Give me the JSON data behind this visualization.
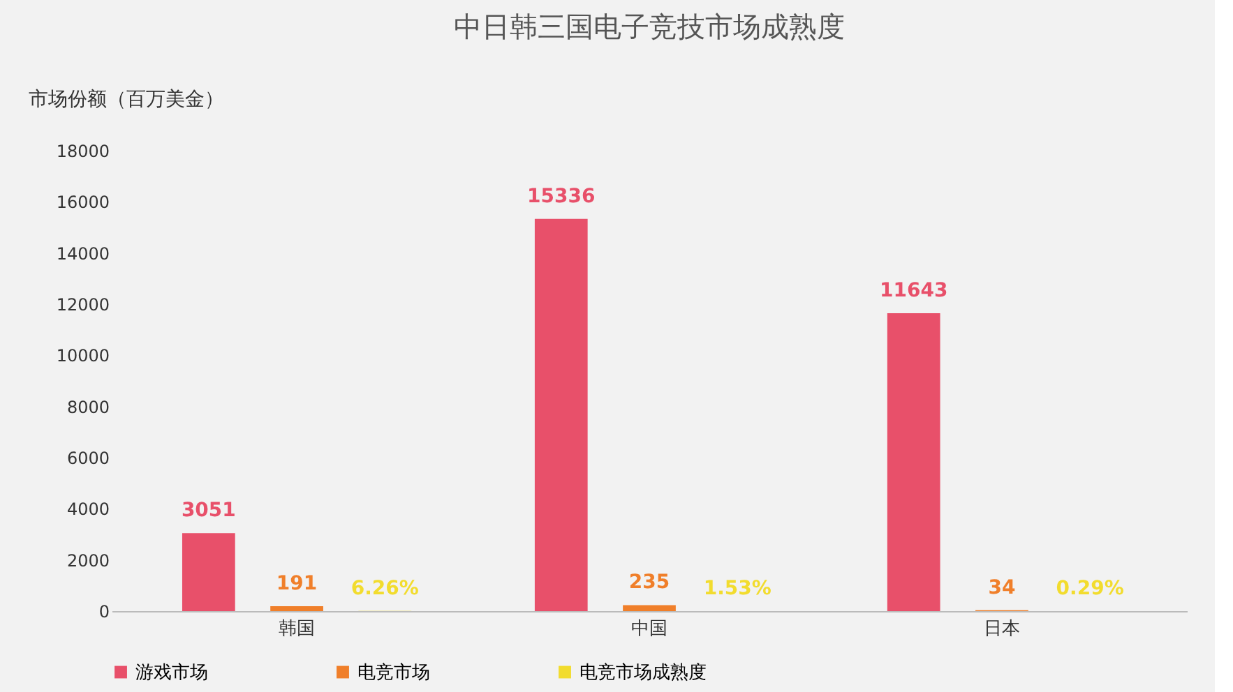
{
  "chart_data": {
    "type": "bar",
    "title": "中日韩三国电子竞技市场成熟度",
    "ylabel": "市场份额（百万美金）",
    "categories": [
      "韩国",
      "中国",
      "日本"
    ],
    "series": [
      {
        "name": "游戏市场",
        "color": "#e8506a",
        "values": [
          3051,
          15336,
          11643
        ],
        "value_labels": [
          "3051",
          "15336",
          "11643"
        ]
      },
      {
        "name": "电竞市场",
        "color": "#f07f2a",
        "values": [
          191,
          235,
          34
        ],
        "value_labels": [
          "191",
          "235",
          "34"
        ]
      },
      {
        "name": "电竞市场成熟度",
        "color": "#f2dc2e",
        "values": [
          6.26,
          1.53,
          0.29
        ],
        "value_labels": [
          "6.26%",
          "1.53%",
          "0.29%"
        ]
      }
    ],
    "ylim": [
      0,
      18000
    ],
    "yticks": [
      0,
      2000,
      4000,
      6000,
      8000,
      10000,
      12000,
      14000,
      16000,
      18000
    ],
    "grid": false,
    "legend": "bottom"
  }
}
